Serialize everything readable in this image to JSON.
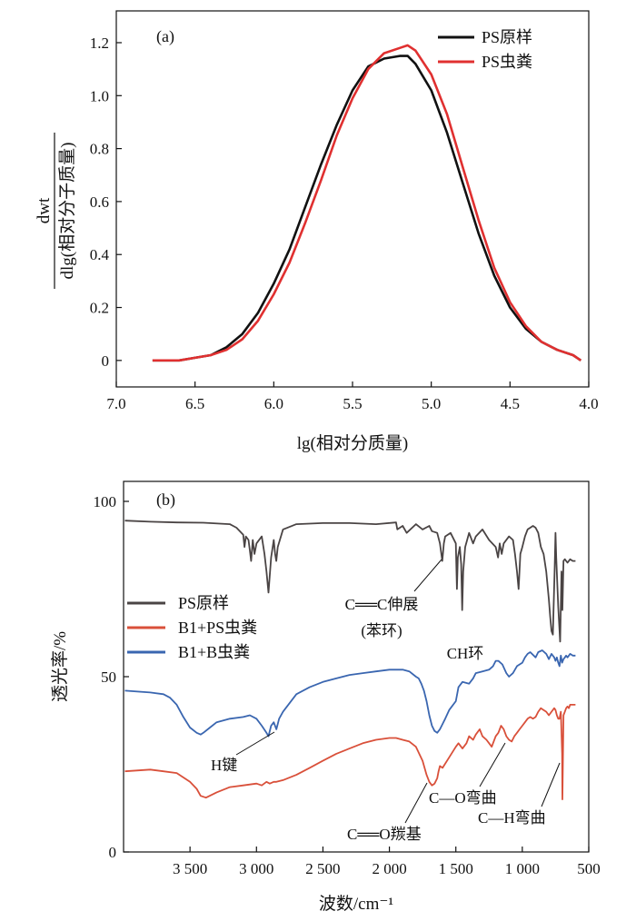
{
  "chart_data": [
    {
      "type": "line",
      "panel_label": "(a)",
      "xlabel": "lg(相对分质量)",
      "ylabel_top": "dwt",
      "ylabel_bottom": "dlg(相对分子质量)",
      "x_reversed": true,
      "xlim": [
        7.0,
        4.0
      ],
      "ylim": [
        -0.1,
        1.32
      ],
      "xticks": [
        7.0,
        6.5,
        6.0,
        5.5,
        5.0,
        4.5,
        4.0
      ],
      "xtick_labels": [
        "7.0",
        "6.5",
        "6.0",
        "5.5",
        "5.0",
        "4.5",
        "4.0"
      ],
      "yticks": [
        0,
        0.2,
        0.4,
        0.6,
        0.8,
        1.0,
        1.2
      ],
      "ytick_labels": [
        "0",
        "0.2",
        "0.4",
        "0.6",
        "0.8",
        "1.0",
        "1.2"
      ],
      "legend_position": "top-right",
      "series": [
        {
          "name": "PS原样",
          "color": "#111111",
          "x": [
            6.77,
            6.6,
            6.5,
            6.4,
            6.3,
            6.2,
            6.1,
            6.0,
            5.9,
            5.8,
            5.7,
            5.6,
            5.5,
            5.4,
            5.3,
            5.2,
            5.15,
            5.1,
            5.0,
            4.9,
            4.8,
            4.7,
            4.6,
            4.5,
            4.4,
            4.3,
            4.2,
            4.1,
            4.05
          ],
          "y": [
            0.0,
            0.0,
            0.01,
            0.02,
            0.05,
            0.1,
            0.18,
            0.29,
            0.42,
            0.58,
            0.74,
            0.89,
            1.02,
            1.11,
            1.14,
            1.15,
            1.15,
            1.12,
            1.02,
            0.86,
            0.67,
            0.48,
            0.32,
            0.2,
            0.12,
            0.07,
            0.04,
            0.02,
            0.0
          ]
        },
        {
          "name": "PS虫粪",
          "color": "#e03030",
          "x": [
            6.77,
            6.6,
            6.5,
            6.4,
            6.3,
            6.2,
            6.1,
            6.0,
            5.9,
            5.8,
            5.7,
            5.6,
            5.5,
            5.4,
            5.3,
            5.2,
            5.15,
            5.1,
            5.0,
            4.9,
            4.8,
            4.7,
            4.6,
            4.5,
            4.4,
            4.3,
            4.2,
            4.1,
            4.05
          ],
          "y": [
            0.0,
            0.0,
            0.01,
            0.02,
            0.04,
            0.08,
            0.15,
            0.25,
            0.37,
            0.52,
            0.68,
            0.85,
            0.99,
            1.1,
            1.16,
            1.18,
            1.19,
            1.17,
            1.08,
            0.93,
            0.73,
            0.53,
            0.35,
            0.22,
            0.13,
            0.07,
            0.04,
            0.02,
            0.0
          ]
        }
      ]
    },
    {
      "type": "line",
      "panel_label": "(b)",
      "xlabel": "波数/cm⁻¹",
      "ylabel": "透光率/%",
      "x_reversed": true,
      "xlim": [
        4000,
        500
      ],
      "ylim": [
        0,
        100
      ],
      "xticks": [
        3500,
        3000,
        2500,
        2000,
        1500,
        1000,
        500
      ],
      "xtick_labels": [
        "3 500",
        "3 000",
        "2 500",
        "2 000",
        "1 500",
        "1 000",
        "500"
      ],
      "yticks": [
        0,
        50,
        100
      ],
      "ytick_labels": [
        "0",
        "50",
        "100"
      ],
      "legend_position": "middle-left",
      "series": [
        {
          "name": "PS原样",
          "color": "#4a4444",
          "x": [
            3990,
            3800,
            3600,
            3400,
            3200,
            3150,
            3100,
            3090,
            3080,
            3060,
            3050,
            3040,
            3028,
            3015,
            3000,
            2960,
            2940,
            2925,
            2910,
            2890,
            2870,
            2860,
            2851,
            2840,
            2800,
            2700,
            2500,
            2300,
            2100,
            1950,
            1940,
            1900,
            1870,
            1800,
            1750,
            1700,
            1680,
            1640,
            1620,
            1602,
            1590,
            1580,
            1540,
            1500,
            1492,
            1485,
            1470,
            1460,
            1452,
            1445,
            1430,
            1400,
            1370,
            1350,
            1300,
            1250,
            1200,
            1182,
            1170,
            1155,
            1140,
            1100,
            1070,
            1055,
            1040,
            1028,
            1015,
            1000,
            980,
            960,
            940,
            920,
            900,
            880,
            860,
            840,
            820,
            800,
            790,
            780,
            770,
            757,
            750,
            745,
            730,
            715,
            705,
            698,
            690,
            680,
            670,
            660,
            650,
            640,
            620,
            600
          ],
          "y": [
            94.5,
            94.2,
            94.0,
            93.9,
            93.5,
            92.5,
            90.5,
            87,
            90,
            89,
            86,
            83,
            89,
            85,
            88,
            90,
            85,
            80,
            74,
            84,
            89,
            85,
            83,
            87,
            92,
            93.5,
            93.8,
            93.8,
            93.5,
            94,
            92,
            93,
            91,
            93.5,
            92,
            93,
            91.5,
            91,
            88,
            83,
            88,
            90,
            91,
            88,
            75,
            84,
            87,
            82,
            69,
            80,
            87,
            91,
            88,
            90,
            92,
            89,
            87,
            84,
            88,
            85,
            88,
            90,
            89,
            85,
            80,
            75,
            85,
            87,
            90,
            92,
            92.5,
            93,
            92.5,
            91,
            87,
            85,
            80,
            72,
            67,
            63,
            62,
            80,
            91,
            84,
            70,
            60,
            80,
            69,
            83,
            83.5,
            83,
            82.5,
            83,
            83.5,
            83,
            83
          ]
        },
        {
          "name": "B1+PS虫粪",
          "color": "#d9503a",
          "x": [
            3990,
            3800,
            3700,
            3600,
            3500,
            3450,
            3420,
            3380,
            3300,
            3200,
            3100,
            3000,
            2960,
            2925,
            2900,
            2870,
            2850,
            2800,
            2700,
            2600,
            2500,
            2400,
            2300,
            2200,
            2100,
            2000,
            1950,
            1900,
            1850,
            1800,
            1750,
            1720,
            1700,
            1680,
            1660,
            1640,
            1630,
            1620,
            1600,
            1550,
            1500,
            1480,
            1450,
            1420,
            1400,
            1370,
            1350,
            1320,
            1300,
            1270,
            1250,
            1230,
            1200,
            1180,
            1160,
            1140,
            1120,
            1100,
            1080,
            1060,
            1040,
            1020,
            1000,
            980,
            960,
            940,
            920,
            900,
            880,
            860,
            840,
            820,
            800,
            780,
            760,
            750,
            740,
            730,
            720,
            710,
            700,
            698,
            695,
            690,
            680,
            670,
            660,
            650,
            640,
            620,
            600
          ],
          "y": [
            23,
            23.5,
            23,
            22.5,
            20,
            18,
            16,
            15.5,
            17,
            18.5,
            19,
            19.5,
            19,
            20,
            19.5,
            20,
            20,
            20.5,
            22,
            24,
            26,
            28,
            29.5,
            31,
            32,
            32.5,
            32.5,
            32,
            31.5,
            30,
            26,
            22,
            20,
            19,
            19.5,
            21,
            23,
            24.5,
            24,
            27,
            30,
            31,
            29.5,
            31,
            33,
            32,
            33.5,
            35,
            33,
            32,
            31,
            30,
            33,
            34,
            36,
            35,
            33,
            32,
            31.5,
            33,
            34,
            35,
            36,
            37,
            38,
            38.5,
            38,
            38.5,
            40,
            41,
            40.5,
            40,
            39,
            40,
            41,
            40.5,
            39,
            38,
            38,
            40,
            28,
            15,
            25,
            39,
            40,
            41,
            41.5,
            41,
            42,
            42,
            42
          ]
        },
        {
          "name": "B1+B虫粪",
          "color": "#3a66b0",
          "x": [
            3990,
            3800,
            3700,
            3650,
            3600,
            3550,
            3500,
            3450,
            3420,
            3400,
            3350,
            3300,
            3200,
            3100,
            3050,
            3000,
            2960,
            2925,
            2910,
            2890,
            2870,
            2850,
            2830,
            2800,
            2700,
            2600,
            2500,
            2400,
            2300,
            2200,
            2100,
            2000,
            1950,
            1900,
            1850,
            1800,
            1780,
            1760,
            1740,
            1720,
            1700,
            1680,
            1660,
            1640,
            1630,
            1620,
            1600,
            1580,
            1550,
            1500,
            1480,
            1450,
            1400,
            1370,
            1350,
            1300,
            1250,
            1220,
            1200,
            1180,
            1150,
            1120,
            1100,
            1070,
            1040,
            1000,
            980,
            960,
            940,
            900,
            880,
            850,
            820,
            800,
            780,
            760,
            750,
            740,
            730,
            720,
            710,
            700,
            690,
            680,
            670,
            660,
            650,
            640,
            620,
            600
          ],
          "y": [
            46,
            45.5,
            45,
            44,
            42,
            38.5,
            35.5,
            34,
            33.5,
            34,
            35.5,
            37,
            38,
            38.5,
            39,
            38,
            36,
            34,
            33,
            36,
            37,
            35,
            38,
            40,
            45,
            47,
            48.5,
            49.5,
            50.5,
            51,
            51.5,
            52,
            52,
            52,
            51.5,
            50,
            49.5,
            48,
            46,
            43,
            39,
            36,
            34.5,
            34,
            34.5,
            35,
            36.5,
            38,
            40.5,
            43,
            47,
            48.5,
            48,
            49.5,
            51,
            51.5,
            52,
            53,
            54.5,
            54.5,
            53.5,
            51,
            50,
            51,
            53,
            54,
            55.5,
            56.5,
            57,
            55.5,
            57,
            57.5,
            56.5,
            55,
            56.5,
            55.5,
            54.5,
            55.5,
            54,
            53,
            56,
            54,
            55,
            55.5,
            56,
            55.5,
            56,
            56.5,
            56,
            56
          ]
        }
      ],
      "annotations": [
        {
          "text": "C══C伸展",
          "line2": "(苯环)"
        },
        {
          "text": "CH环"
        },
        {
          "text": "H键"
        },
        {
          "text": "C—O弯曲"
        },
        {
          "text": "C—H弯曲"
        },
        {
          "text": "C══O羰基"
        }
      ]
    }
  ]
}
